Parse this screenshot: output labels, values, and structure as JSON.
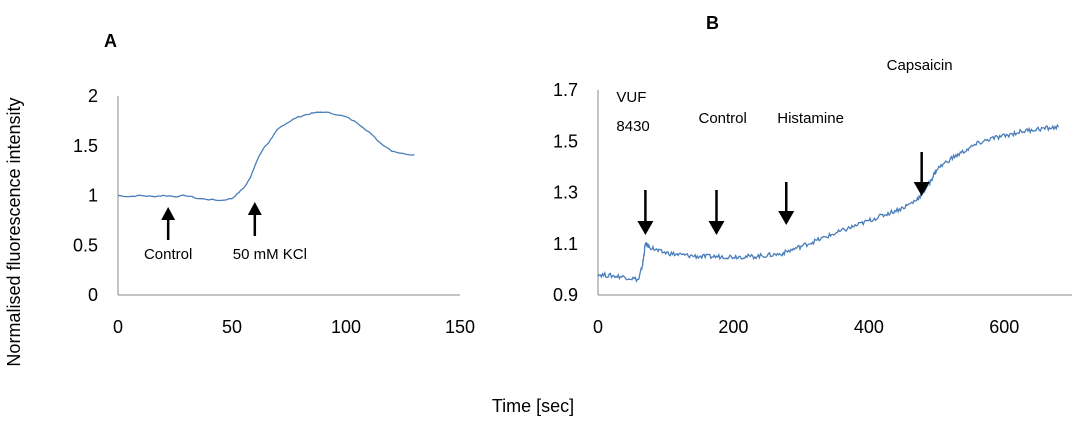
{
  "shared": {
    "ylabel": "Normalised  fluorescence  intensity",
    "xlabel": "Time [sec]"
  },
  "chart_data": [
    {
      "type": "line",
      "panel_label": "A",
      "xlim": [
        0,
        150
      ],
      "ylim": [
        0,
        2
      ],
      "xticks": [
        "0",
        "50",
        "100",
        "150"
      ],
      "yticks": [
        "0",
        "0.5",
        "1",
        "1.5",
        "2"
      ],
      "grid": false,
      "series_color": "#4a7ebb",
      "series": [
        {
          "x": [
            0,
            5,
            10,
            15,
            20,
            25,
            30,
            35,
            40,
            45,
            50,
            53,
            56,
            58,
            60,
            62,
            64,
            66,
            68,
            70,
            72,
            75,
            78,
            82,
            86,
            90,
            95,
            100,
            105,
            110,
            115,
            120,
            125,
            130
          ],
          "y": [
            1.0,
            0.99,
            1.0,
            0.99,
            1.0,
            0.99,
            1.0,
            0.97,
            0.96,
            0.95,
            0.97,
            1.03,
            1.1,
            1.18,
            1.3,
            1.4,
            1.48,
            1.53,
            1.6,
            1.66,
            1.7,
            1.74,
            1.78,
            1.81,
            1.83,
            1.84,
            1.82,
            1.79,
            1.73,
            1.64,
            1.53,
            1.45,
            1.42,
            1.41
          ]
        }
      ],
      "annotations": [
        {
          "text": "Control",
          "x": 22,
          "y_tip": 0.97,
          "direction": "up"
        },
        {
          "text": "50 mM KCl",
          "x": 60,
          "y_tip": 0.9,
          "direction": "up"
        }
      ]
    },
    {
      "type": "line",
      "panel_label": "B",
      "xlim": [
        0,
        700
      ],
      "ylim": [
        0.9,
        1.7
      ],
      "xticks": [
        "0",
        "200",
        "400",
        "600"
      ],
      "yticks": [
        "0.9",
        "1.1",
        "1.3",
        "1.5",
        "1.7"
      ],
      "grid": false,
      "series_color": "#4a7ebb",
      "series": [
        {
          "x": [
            0,
            20,
            40,
            60,
            66,
            70,
            75,
            90,
            110,
            130,
            150,
            170,
            190,
            210,
            230,
            250,
            270,
            290,
            310,
            330,
            350,
            370,
            390,
            410,
            430,
            450,
            470,
            480,
            490,
            500,
            520,
            540,
            560,
            580,
            600,
            620,
            640,
            660,
            680
          ],
          "y": [
            0.98,
            0.975,
            0.97,
            0.96,
            1.02,
            1.1,
            1.09,
            1.07,
            1.06,
            1.055,
            1.05,
            1.05,
            1.05,
            1.05,
            1.05,
            1.055,
            1.06,
            1.08,
            1.1,
            1.12,
            1.14,
            1.16,
            1.18,
            1.2,
            1.22,
            1.24,
            1.27,
            1.3,
            1.34,
            1.39,
            1.43,
            1.46,
            1.49,
            1.51,
            1.52,
            1.535,
            1.545,
            1.55,
            1.555
          ]
        }
      ],
      "annotations": [
        {
          "lines": [
            "VUF",
            "8430"
          ],
          "x": 70,
          "direction": "down"
        },
        {
          "lines": [
            "Control"
          ],
          "x": 175,
          "direction": "down"
        },
        {
          "lines": [
            "Histamine"
          ],
          "x": 278,
          "direction": "down"
        },
        {
          "lines": [
            "Capsaicin"
          ],
          "x": 478,
          "direction": "down"
        }
      ]
    }
  ]
}
